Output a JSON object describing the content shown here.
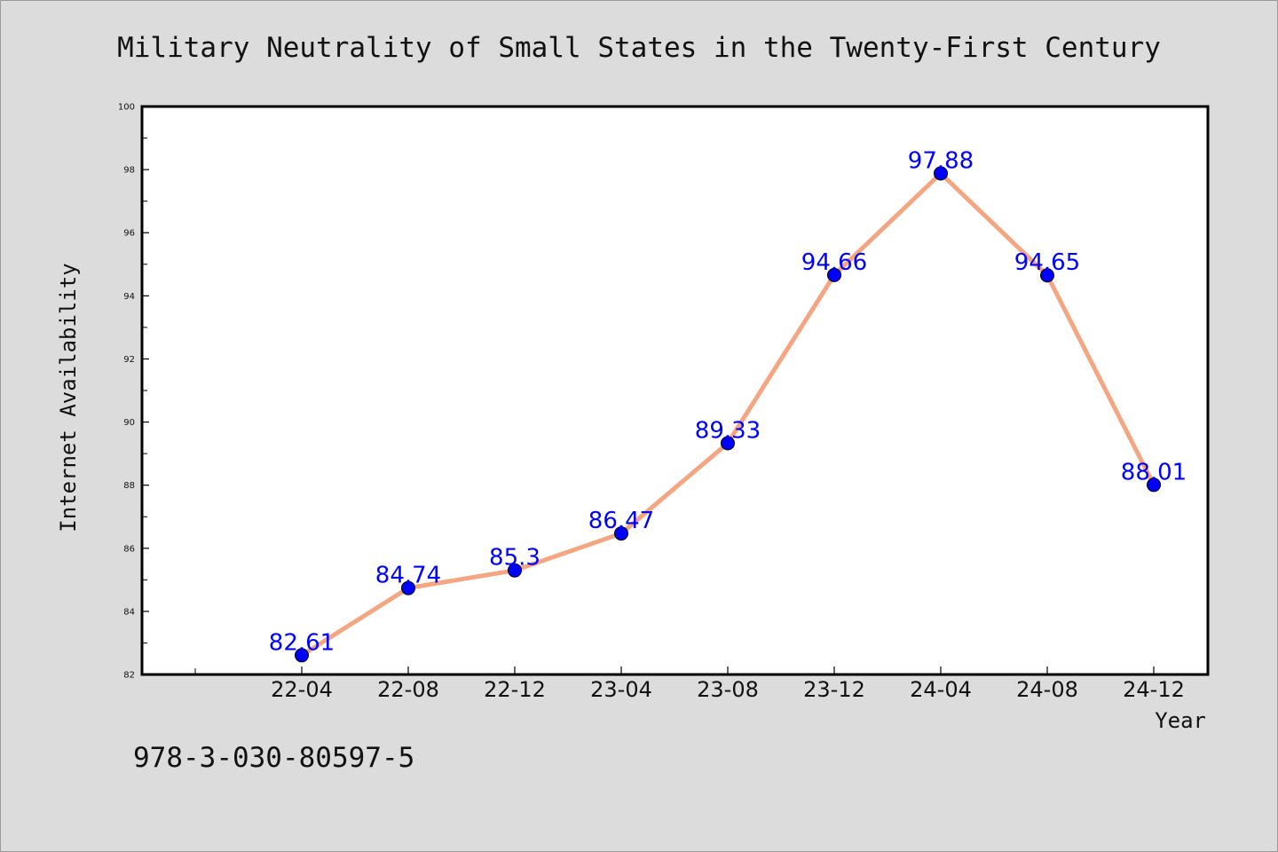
{
  "chart_data": {
    "type": "line",
    "title": "Military Neutrality of Small States in the Twenty-First Century",
    "xlabel": "Year",
    "ylabel": "Internet Availability",
    "categories": [
      "22-04",
      "22-08",
      "22-12",
      "23-04",
      "23-08",
      "23-12",
      "24-04",
      "24-08",
      "24-12"
    ],
    "series": [
      {
        "values": [
          82.61,
          84.74,
          85.3,
          86.47,
          89.33,
          94.66,
          97.88,
          94.65,
          88.01
        ],
        "data_labels": [
          "82.61",
          "84.74",
          "85.3",
          "86.47",
          "89.33",
          "94.66",
          "97.88",
          "94.65",
          "88.01"
        ],
        "line_color": "#f4a582",
        "marker_color": "#0000ff"
      }
    ],
    "ylim": [
      82,
      100
    ],
    "yticks": [
      "82",
      "84",
      "86",
      "88",
      "90",
      "92",
      "94",
      "96",
      "98",
      "100"
    ],
    "grid": false,
    "legend": "none"
  },
  "footnote": "978-3-030-80597-5"
}
